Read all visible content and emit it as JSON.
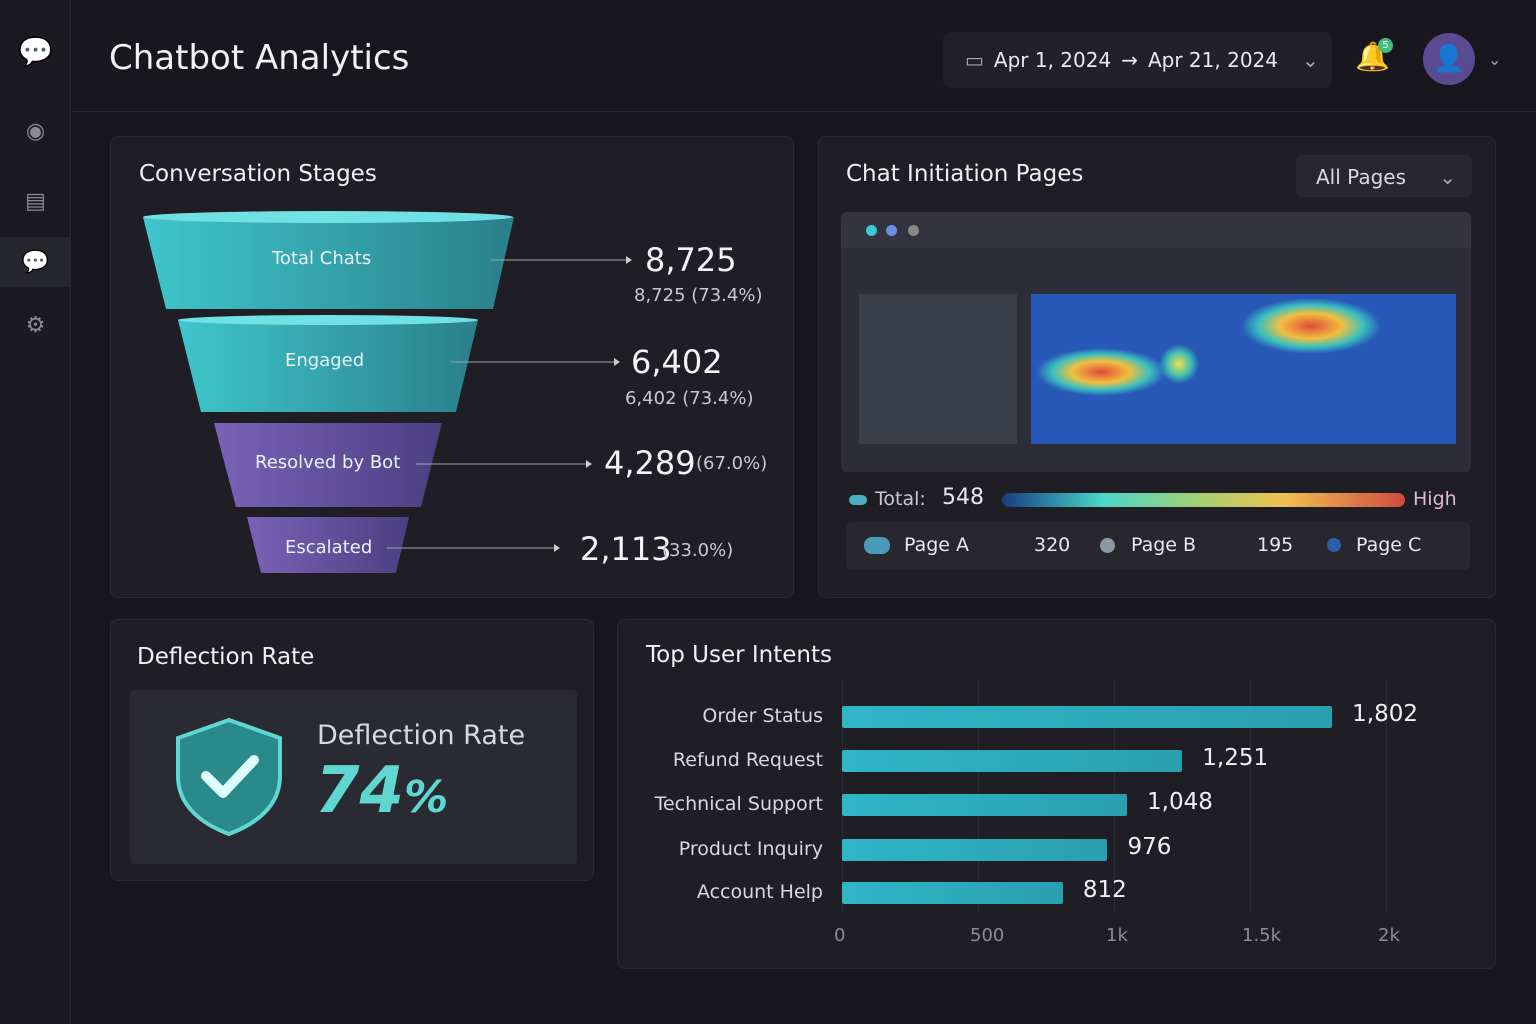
{
  "header": {
    "title": "Chatbot Analytics",
    "date_start": "Apr 1, 2024",
    "arrow": "→",
    "date_end": "Apr 21, 2024",
    "notification_count": "5"
  },
  "sidebar": {
    "items": [
      "overview",
      "messages",
      "chatbot",
      "settings"
    ]
  },
  "funnel": {
    "title": "Conversation Stages",
    "stages": [
      {
        "label": "Total Chats",
        "value": "8,725",
        "sub": "8,725 (73.4%)"
      },
      {
        "label": "Engaged",
        "value": "6,402",
        "sub": "6,402 (73.4%)"
      },
      {
        "label": "Resolved by Bot",
        "value": "4,289",
        "sub": "(67.0%)"
      },
      {
        "label": "Escalated",
        "value": "2,113",
        "sub": "(33.0%)"
      }
    ]
  },
  "heatmap": {
    "title": "Chat Initiation Pages",
    "filter": "All Pages",
    "total_label": "Total:",
    "total": "548",
    "high_label": "High",
    "legend": [
      {
        "label": "Page A",
        "value": "320",
        "color": "#4a9ab8"
      },
      {
        "label": "Page B",
        "value": "195",
        "color": "#8a9aa4"
      },
      {
        "label": "Page C",
        "value": "",
        "color": "#2a5ea8"
      }
    ]
  },
  "deflection": {
    "title": "Deflection Rate",
    "label": "Deflection Rate",
    "value": "74",
    "unit": "%"
  },
  "chart_data": {
    "type": "bar",
    "title": "Top User Intents",
    "categories": [
      "Order Status",
      "Refund Request",
      "Technical Support",
      "Product Inquiry",
      "Account Help"
    ],
    "values": [
      1802,
      1251,
      1048,
      976,
      812
    ],
    "value_labels": [
      "1,802",
      "1,251",
      "1,048",
      "976",
      "812"
    ],
    "xticks": [
      "0",
      "500",
      "1k",
      "1.5k",
      "2k"
    ],
    "xlim": [
      0,
      2000
    ],
    "color": "#2fb6c7"
  }
}
